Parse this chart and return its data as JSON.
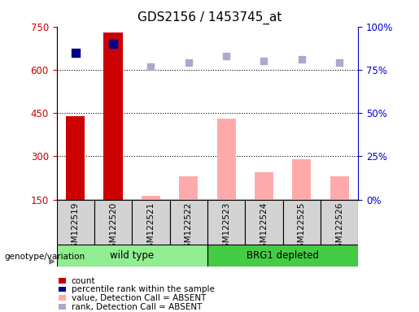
{
  "title": "GDS2156 / 1453745_at",
  "samples": [
    "GSM122519",
    "GSM122520",
    "GSM122521",
    "GSM122522",
    "GSM122523",
    "GSM122524",
    "GSM122525",
    "GSM122526"
  ],
  "count_values": [
    440,
    730,
    null,
    null,
    null,
    null,
    null,
    null
  ],
  "count_color": "#cc0000",
  "rank_values": [
    85,
    90,
    null,
    null,
    null,
    null,
    null,
    null
  ],
  "rank_color": "#00008b",
  "absent_value": [
    null,
    null,
    163,
    230,
    430,
    245,
    290,
    230
  ],
  "absent_value_color": "#ffaaaa",
  "absent_rank": [
    null,
    null,
    77,
    79,
    83,
    80,
    81,
    79
  ],
  "absent_rank_color": "#aaaacc",
  "ylim_left": [
    150,
    750
  ],
  "ylim_right": [
    0,
    100
  ],
  "yticks_left": [
    150,
    300,
    450,
    600,
    750
  ],
  "yticks_right": [
    0,
    25,
    50,
    75,
    100
  ],
  "left_axis_color": "#cc0000",
  "right_axis_color": "#0000cc",
  "legend_items": [
    "count",
    "percentile rank within the sample",
    "value, Detection Call = ABSENT",
    "rank, Detection Call = ABSENT"
  ],
  "legend_colors": [
    "#cc0000",
    "#00008b",
    "#ffaaaa",
    "#aaaacc"
  ],
  "group_regions": [
    [
      0,
      3,
      "wild type",
      "#90ee90"
    ],
    [
      4,
      7,
      "BRG1 depleted",
      "#44cc44"
    ]
  ],
  "grid_values": [
    300,
    450,
    600
  ],
  "bar_width": 0.5
}
